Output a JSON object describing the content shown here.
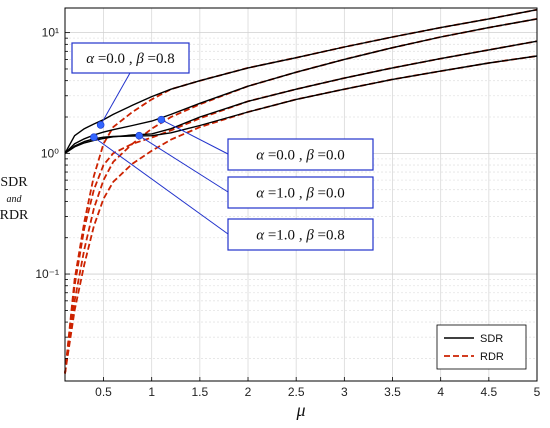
{
  "chart_data": {
    "type": "line",
    "title": "",
    "xlabel": "μ",
    "ylabel": {
      "line1": "SDR",
      "line2": "and",
      "line3": "RDR"
    },
    "xlim": [
      0.1,
      5
    ],
    "ylim": [
      0.013,
      16
    ],
    "yscale": "log",
    "x_ticks": [
      0.5,
      1,
      1.5,
      2,
      2.5,
      3,
      3.5,
      4,
      4.5,
      5
    ],
    "x_tick_labels": [
      "0.5",
      "1",
      "1.5",
      "2",
      "2.5",
      "3",
      "3.5",
      "4",
      "4.5",
      "5"
    ],
    "y_ticks": [
      0.1,
      1,
      10
    ],
    "y_tick_labels": [
      "10⁻¹",
      "10⁰",
      "10¹"
    ],
    "grid": true,
    "legend": {
      "placement": "bottom-right",
      "entries": [
        {
          "label": "SDR",
          "style": "solid",
          "color": "#000000"
        },
        {
          "label": "RDR",
          "style": "dashed",
          "color": "#cc2200"
        }
      ]
    },
    "colors": {
      "sdr": "#000000",
      "rdr": "#cc2200",
      "annotation": "#2233cc",
      "marker": "#3366ff"
    },
    "x": [
      0.1,
      0.2,
      0.3,
      0.4,
      0.5,
      0.6,
      0.8,
      1.0,
      1.2,
      1.5,
      2.0,
      2.5,
      3.0,
      3.5,
      4.0,
      4.5,
      5.0
    ],
    "series": [
      {
        "group": "SDR",
        "values": [
          1.0,
          1.4,
          1.6,
          1.75,
          1.9,
          2.1,
          2.5,
          2.95,
          3.4,
          4.0,
          5.1,
          6.2,
          7.6,
          9.2,
          11.0,
          13.0,
          15.5
        ]
      },
      {
        "group": "SDR",
        "values": [
          1.0,
          1.2,
          1.32,
          1.42,
          1.5,
          1.57,
          1.7,
          1.85,
          2.1,
          2.6,
          3.6,
          4.7,
          6.0,
          7.5,
          9.2,
          11.0,
          13.0
        ]
      },
      {
        "group": "SDR",
        "values": [
          1.0,
          1.13,
          1.22,
          1.28,
          1.33,
          1.37,
          1.42,
          1.45,
          1.6,
          2.0,
          2.7,
          3.4,
          4.2,
          5.1,
          6.1,
          7.2,
          8.5
        ]
      },
      {
        "group": "SDR",
        "values": [
          1.0,
          1.15,
          1.25,
          1.32,
          1.36,
          1.38,
          1.39,
          1.4,
          1.48,
          1.7,
          2.2,
          2.8,
          3.4,
          4.1,
          4.8,
          5.6,
          6.4
        ]
      },
      {
        "group": "RDR",
        "values": [
          0.015,
          0.09,
          0.27,
          0.65,
          1.2,
          1.65,
          2.2,
          2.8,
          3.4,
          4.0,
          5.1,
          6.2,
          7.6,
          9.2,
          11.0,
          13.0,
          15.5
        ]
      },
      {
        "group": "RDR",
        "values": [
          0.015,
          0.06,
          0.16,
          0.35,
          0.6,
          0.85,
          1.2,
          1.6,
          2.0,
          2.55,
          3.6,
          4.7,
          6.0,
          7.5,
          9.2,
          11.0,
          13.0
        ]
      },
      {
        "group": "RDR",
        "values": [
          0.015,
          0.08,
          0.24,
          0.5,
          0.8,
          1.0,
          1.2,
          1.35,
          1.55,
          1.95,
          2.7,
          3.4,
          4.2,
          5.1,
          6.1,
          7.2,
          8.5
        ]
      },
      {
        "group": "RDR",
        "values": [
          0.015,
          0.05,
          0.12,
          0.25,
          0.42,
          0.58,
          0.82,
          1.05,
          1.3,
          1.65,
          2.2,
          2.8,
          3.4,
          4.1,
          4.8,
          5.6,
          6.4
        ]
      }
    ],
    "annotations": [
      {
        "alpha": "0.0",
        "beta": "0.8",
        "point": [
          0.47,
          1.72
        ]
      },
      {
        "alpha": "0.0",
        "beta": "0.0",
        "point": [
          1.1,
          1.9
        ]
      },
      {
        "alpha": "1.0",
        "beta": "0.0",
        "point": [
          0.87,
          1.4
        ]
      },
      {
        "alpha": "1.0",
        "beta": "0.8",
        "point": [
          0.4,
          1.36
        ]
      }
    ],
    "annotation_text": {
      "alpha_symbol": "α",
      "beta_symbol": "β",
      "equals": "=",
      "separator": " , "
    }
  }
}
